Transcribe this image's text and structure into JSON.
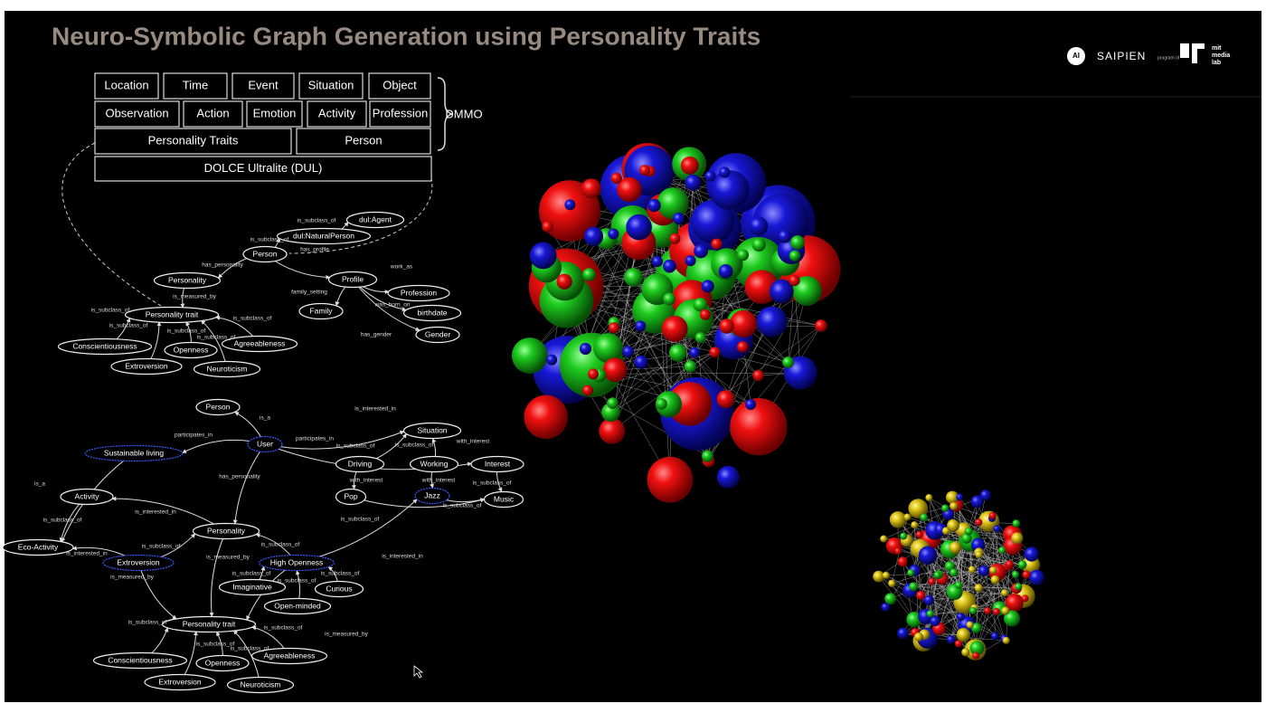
{
  "header": {
    "title": "Neuro-Symbolic Graph Generation using Personality Traits",
    "logo_ai": "AI",
    "logo_saipien": "SAIPIEN",
    "logo_program": "program of",
    "logo_mit": [
      "mit",
      "media",
      "lab"
    ]
  },
  "ontology": {
    "rows": [
      [
        "Location",
        "Time",
        "Event",
        "Situation",
        "Object"
      ],
      [
        "Observation",
        "Action",
        "Emotion",
        "Activity",
        "Profession"
      ],
      [
        "Personality Traits",
        "Person"
      ],
      [
        "DOLCE Ultralite (DUL)"
      ]
    ],
    "brace_label": "DMMO"
  },
  "graph1": {
    "nodes": [
      "dul:Agent",
      "dul:NaturalPerson",
      "Person",
      "Profile",
      "Personality",
      "Profession",
      "Family",
      "birthdate",
      "Personality trait",
      "Gender",
      "Conscientiousness",
      "Agreeableness",
      "Openness",
      "Extroversion",
      "Neuroticism"
    ],
    "edge_labels": [
      "is_subclass_of",
      "is_subclass_of",
      "has_profile",
      "has_personality",
      "work_as",
      "is_measured_by",
      "family_setting",
      "was_born_on",
      "is_subclass_of",
      "is_subclass_of",
      "is_subclass_of",
      "is_subclass_of",
      "is_subclass_of",
      "has_gender"
    ]
  },
  "graph2": {
    "nodes": [
      "Person",
      "User",
      "Sustainable living",
      "Situation",
      "Driving",
      "Working",
      "Interest",
      "Activity",
      "Pop",
      "Jazz",
      "Music",
      "Personality",
      "Eco-Activity",
      "Extroversion",
      "High Openness",
      "Imaginative",
      "Curious",
      "Open-minded",
      "Personality trait",
      "Conscientiousness",
      "Agreeableness",
      "Openness",
      "Extroversion",
      "Neuroticism"
    ],
    "edge_labels": [
      "is_a",
      "is_interested_in",
      "participates_in",
      "participates_in",
      "is_subclass_of",
      "is_subclass_of",
      "with_interest",
      "is_a",
      "has_personality",
      "with_interest",
      "with_interest",
      "is_subclass_of",
      "is_subclass_of",
      "is_interested_in",
      "is_subclass_of",
      "is_subclass_of",
      "is_subclass_of",
      "is_subclass_of",
      "is_interested_in",
      "is_measured_by",
      "is_interested_in",
      "is_measured_by",
      "is_subclass_of",
      "is_subclass_of",
      "is_subclass_of",
      "is_subclass_of",
      "is_subclass_of",
      "is_measured_by",
      "is_subclass_of",
      "is_subclass_of"
    ]
  }
}
